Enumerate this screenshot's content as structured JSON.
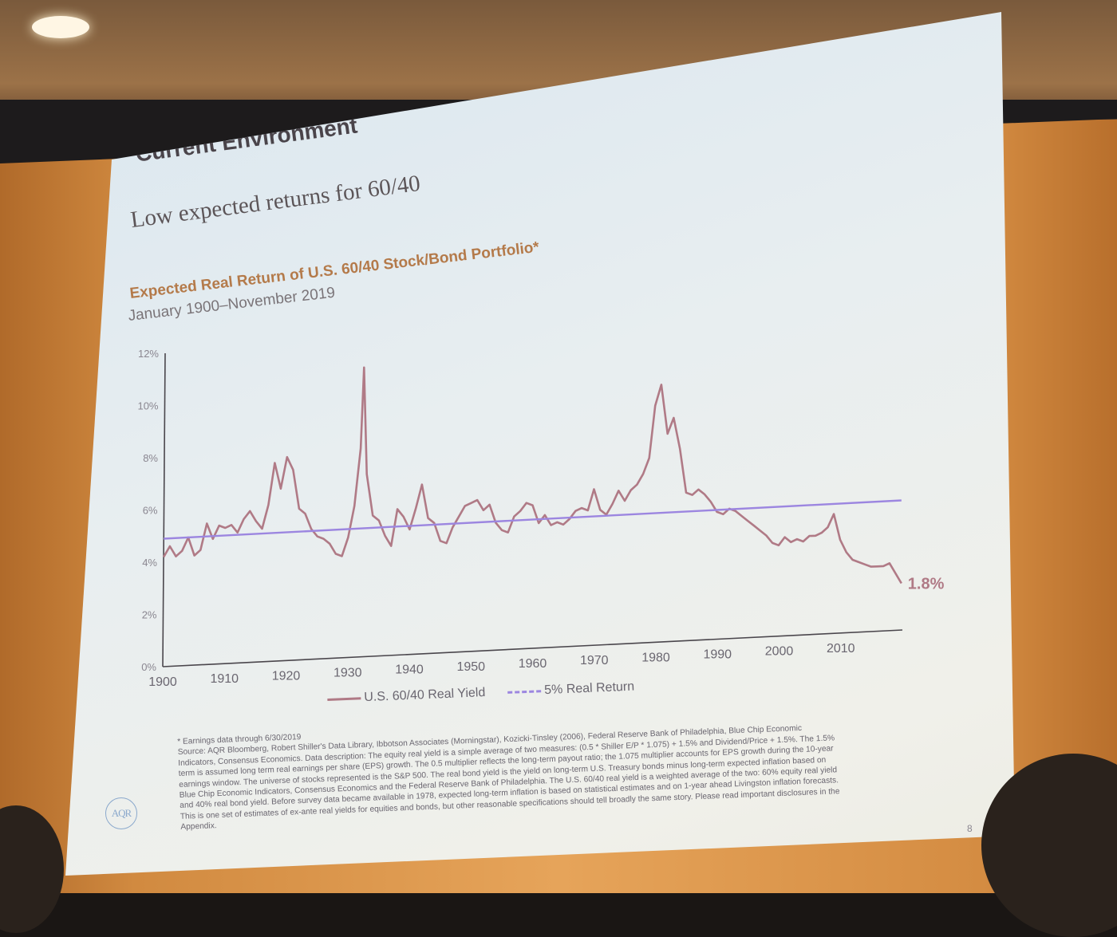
{
  "slide": {
    "title": "Current Environment",
    "subtitle": "Low expected returns for 60/40",
    "page_number": "8"
  },
  "logo": {
    "text": "AQR"
  },
  "chart_data": {
    "type": "line",
    "title": "Expected Real Return of U.S. 60/40 Stock/Bond Portfolio*",
    "subtitle": "January 1900–November 2019",
    "x_ticks": [
      1900,
      1910,
      1920,
      1930,
      1940,
      1950,
      1960,
      1970,
      1980,
      1990,
      2000,
      2010
    ],
    "y_ticks": [
      "0%",
      "2%",
      "4%",
      "6%",
      "8%",
      "10%",
      "12%"
    ],
    "xlim": [
      1900,
      2020
    ],
    "ylim": [
      0,
      12
    ],
    "end_label": "1.8%",
    "series": [
      {
        "name": "U.S. 60/40 Real Yield",
        "color": "#b07a86",
        "points": [
          [
            1900,
            4.2
          ],
          [
            1901,
            4.6
          ],
          [
            1902,
            4.2
          ],
          [
            1903,
            4.4
          ],
          [
            1904,
            4.9
          ],
          [
            1905,
            4.2
          ],
          [
            1906,
            4.4
          ],
          [
            1907,
            5.4
          ],
          [
            1908,
            4.8
          ],
          [
            1909,
            5.3
          ],
          [
            1910,
            5.2
          ],
          [
            1911,
            5.3
          ],
          [
            1912,
            5.0
          ],
          [
            1913,
            5.5
          ],
          [
            1914,
            5.8
          ],
          [
            1915,
            5.4
          ],
          [
            1916,
            5.1
          ],
          [
            1917,
            6.0
          ],
          [
            1918,
            7.6
          ],
          [
            1919,
            6.6
          ],
          [
            1920,
            7.8
          ],
          [
            1921,
            7.3
          ],
          [
            1922,
            5.8
          ],
          [
            1923,
            5.6
          ],
          [
            1924,
            5.0
          ],
          [
            1925,
            4.7
          ],
          [
            1926,
            4.6
          ],
          [
            1927,
            4.4
          ],
          [
            1928,
            4.0
          ],
          [
            1929,
            3.9
          ],
          [
            1930,
            4.6
          ],
          [
            1931,
            5.8
          ],
          [
            1932,
            8.0
          ],
          [
            1932.5,
            11.1
          ],
          [
            1933,
            7.0
          ],
          [
            1934,
            5.4
          ],
          [
            1935,
            5.2
          ],
          [
            1936,
            4.6
          ],
          [
            1937,
            4.2
          ],
          [
            1938,
            5.6
          ],
          [
            1939,
            5.3
          ],
          [
            1940,
            4.8
          ],
          [
            1941,
            5.6
          ],
          [
            1942,
            6.5
          ],
          [
            1943,
            5.2
          ],
          [
            1944,
            5.0
          ],
          [
            1945,
            4.3
          ],
          [
            1946,
            4.2
          ],
          [
            1947,
            4.8
          ],
          [
            1948,
            5.2
          ],
          [
            1949,
            5.6
          ],
          [
            1950,
            5.7
          ],
          [
            1951,
            5.8
          ],
          [
            1952,
            5.4
          ],
          [
            1953,
            5.6
          ],
          [
            1954,
            4.9
          ],
          [
            1955,
            4.6
          ],
          [
            1956,
            4.5
          ],
          [
            1957,
            5.1
          ],
          [
            1958,
            5.3
          ],
          [
            1959,
            5.6
          ],
          [
            1960,
            5.5
          ],
          [
            1961,
            4.8
          ],
          [
            1962,
            5.1
          ],
          [
            1963,
            4.7
          ],
          [
            1964,
            4.8
          ],
          [
            1965,
            4.7
          ],
          [
            1966,
            4.9
          ],
          [
            1967,
            5.2
          ],
          [
            1968,
            5.3
          ],
          [
            1969,
            5.2
          ],
          [
            1970,
            6.0
          ],
          [
            1971,
            5.2
          ],
          [
            1972,
            5.0
          ],
          [
            1973,
            5.4
          ],
          [
            1974,
            5.9
          ],
          [
            1975,
            5.5
          ],
          [
            1976,
            5.9
          ],
          [
            1977,
            6.1
          ],
          [
            1978,
            6.5
          ],
          [
            1979,
            7.1
          ],
          [
            1980,
            9.1
          ],
          [
            1981,
            9.9
          ],
          [
            1982,
            8.0
          ],
          [
            1983,
            8.6
          ],
          [
            1984,
            7.4
          ],
          [
            1985,
            5.7
          ],
          [
            1986,
            5.6
          ],
          [
            1987,
            5.8
          ],
          [
            1988,
            5.6
          ],
          [
            1989,
            5.3
          ],
          [
            1990,
            4.9
          ],
          [
            1991,
            4.8
          ],
          [
            1992,
            5.0
          ],
          [
            1993,
            4.9
          ],
          [
            1994,
            4.7
          ],
          [
            1995,
            4.5
          ],
          [
            1996,
            4.3
          ],
          [
            1997,
            4.1
          ],
          [
            1998,
            3.9
          ],
          [
            1999,
            3.6
          ],
          [
            2000,
            3.5
          ],
          [
            2001,
            3.8
          ],
          [
            2002,
            3.6
          ],
          [
            2003,
            3.7
          ],
          [
            2004,
            3.6
          ],
          [
            2005,
            3.8
          ],
          [
            2006,
            3.8
          ],
          [
            2007,
            3.9
          ],
          [
            2008,
            4.1
          ],
          [
            2009,
            4.6
          ],
          [
            2010,
            3.6
          ],
          [
            2011,
            3.1
          ],
          [
            2012,
            2.8
          ],
          [
            2013,
            2.7
          ],
          [
            2014,
            2.6
          ],
          [
            2015,
            2.5
          ],
          [
            2016,
            2.5
          ],
          [
            2017,
            2.5
          ],
          [
            2018,
            2.6
          ],
          [
            2019.9,
            1.8
          ]
        ]
      },
      {
        "name": "5% Real Return",
        "color": "#9c86e0",
        "dashed_in_legend": true,
        "points": [
          [
            1900,
            4.9
          ],
          [
            2020,
            5.0
          ]
        ]
      }
    ]
  },
  "footnote": {
    "lines": [
      "* Earnings data through 6/30/2019",
      "Source: AQR Bloomberg, Robert Shiller's Data Library, Ibbotson Associates (Morningstar), Kozicki-Tinsley (2006), Federal Reserve Bank of Philadelphia, Blue Chip Economic",
      "Indicators, Consensus Economics. Data description: The equity real yield is a simple average of two measures: (0.5 * Shiller E/P * 1.075) + 1.5% and Dividend/Price + 1.5%. The 1.5%",
      "term is assumed long term real earnings per share (EPS) growth. The 0.5 multiplier reflects the long-term payout ratio; the 1.075 multiplier accounts for EPS growth during the 10-year",
      "earnings window. The universe of stocks represented is the S&P 500. The real bond yield is the yield on long-term U.S. Treasury bonds minus long-term expected inflation based on",
      "Blue Chip Economic Indicators, Consensus Economics and the Federal Reserve Bank of Philadelphia. The U.S. 60/40 real yield is a weighted average of the two: 60% equity real yield",
      "and 40% real bond yield. Before survey data became available in 1978, expected long-term inflation is based on statistical estimates and on 1-year ahead Livingston inflation forecasts.",
      "This is one set of estimates of ex-ante real yields for equities and bonds, but other reasonable specifications should tell broadly the same story. Please read important disclosures in the",
      "Appendix."
    ]
  }
}
